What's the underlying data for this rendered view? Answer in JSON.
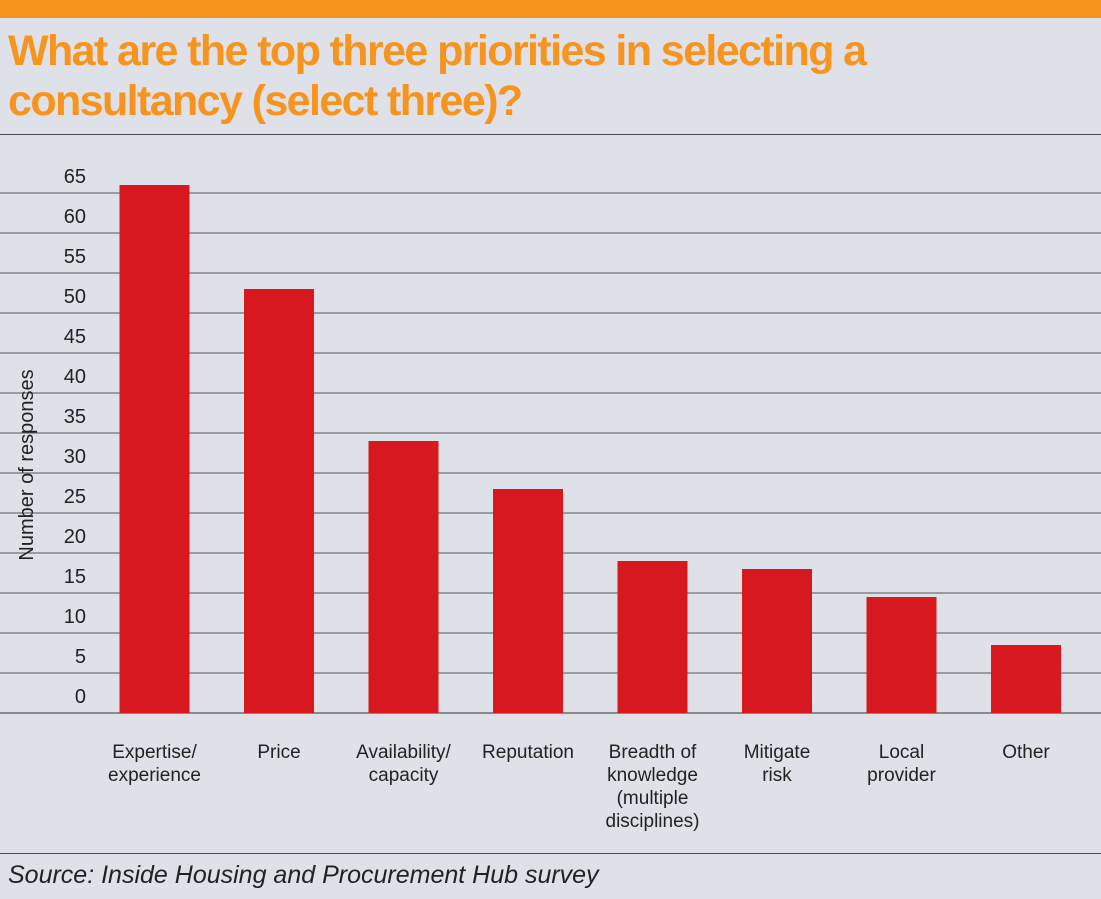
{
  "header": {
    "title": "What are the top three priorities in selecting a consultancy (select three)?",
    "accent_color": "#f7941d"
  },
  "footer": {
    "source": "Source: Inside Housing and Procurement Hub survey"
  },
  "chart_data": {
    "type": "bar",
    "title": "What are the top three priorities in selecting a consultancy (select three)?",
    "ylabel": "Number of responses",
    "xlabel": "",
    "ylim": [
      0,
      65
    ],
    "yticks": [
      0,
      5,
      10,
      15,
      20,
      25,
      30,
      35,
      40,
      45,
      50,
      55,
      60,
      65
    ],
    "grid": true,
    "legend": "none",
    "bar_color": "#d7191f",
    "categories": [
      [
        "Expertise/",
        "experience"
      ],
      [
        "Price"
      ],
      [
        "Availability/",
        "capacity"
      ],
      [
        "Reputation"
      ],
      [
        "Breadth of",
        "knowledge",
        "(multiple",
        "disciplines)"
      ],
      [
        "Mitigate",
        "risk"
      ],
      [
        "Local",
        "provider"
      ],
      [
        "Other"
      ]
    ],
    "values": [
      66,
      53,
      34,
      28,
      19,
      18,
      14.5,
      8.5
    ]
  }
}
